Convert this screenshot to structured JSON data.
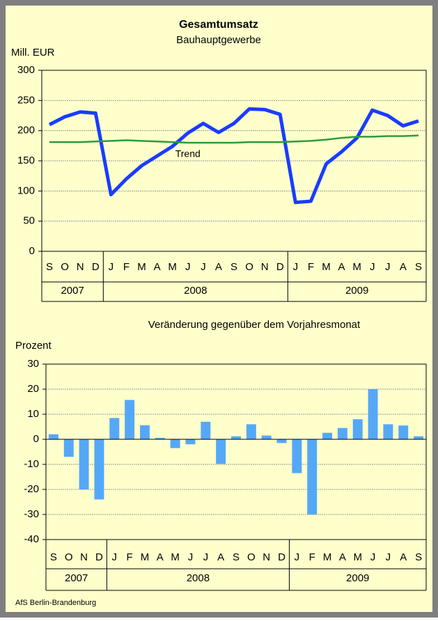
{
  "chart_data": [
    {
      "type": "line",
      "title": "Gesamtumsatz",
      "subtitle": "Bauhauptgewerbe",
      "ylabel": "Mill. EUR",
      "groups": [
        {
          "label": "2007",
          "categories": [
            "S",
            "O",
            "N",
            "D"
          ]
        },
        {
          "label": "2008",
          "categories": [
            "J",
            "F",
            "M",
            "A",
            "M",
            "J",
            "J",
            "A",
            "S",
            "O",
            "N",
            "D"
          ]
        },
        {
          "label": "2009",
          "categories": [
            "J",
            "F",
            "M",
            "A",
            "M",
            "J",
            "J",
            "A",
            "S"
          ]
        }
      ],
      "series": [
        {
          "color": "#1a3cff",
          "values": [
            210,
            223,
            231,
            229,
            94,
            120,
            142,
            158,
            174,
            196,
            212,
            197,
            212,
            236,
            235,
            227,
            81,
            83,
            145,
            165,
            188,
            234,
            225,
            208,
            216
          ]
        },
        {
          "name": "Trend",
          "color": "#2e9a3a",
          "values": [
            181,
            181,
            181,
            182,
            183,
            184,
            183,
            182,
            181,
            180,
            180,
            180,
            180,
            181,
            181,
            181,
            182,
            183,
            185,
            188,
            190,
            190,
            191,
            191,
            192
          ]
        }
      ],
      "ylim": [
        0,
        300
      ],
      "yticks": [
        0,
        50,
        100,
        150,
        200,
        250,
        300
      ],
      "grid": true
    },
    {
      "type": "bar",
      "title": "Veränderung gegenüber dem Vorjahresmonat",
      "ylabel": "Prozent",
      "color": "#55a8f8",
      "groups": [
        {
          "label": "2007",
          "categories": [
            "S",
            "O",
            "N",
            "D"
          ]
        },
        {
          "label": "2008",
          "categories": [
            "J",
            "F",
            "M",
            "A",
            "M",
            "J",
            "J",
            "A",
            "S",
            "O",
            "N",
            "D"
          ]
        },
        {
          "label": "2009",
          "categories": [
            "J",
            "F",
            "M",
            "A",
            "M",
            "J",
            "J",
            "A",
            "S"
          ]
        }
      ],
      "values": [
        2,
        -7,
        -20,
        -24,
        8.5,
        15.7,
        5.6,
        0.6,
        -3.5,
        -2,
        7,
        -9.8,
        1.2,
        6,
        1.5,
        -1.5,
        -13.5,
        -30,
        2.6,
        4.5,
        8,
        20,
        6,
        5.5,
        1.2
      ],
      "ylim": [
        -40,
        30
      ],
      "yticks": [
        -40,
        -30,
        -20,
        -10,
        0,
        10,
        20,
        30
      ],
      "grid": true
    }
  ],
  "footer": "AfS Berlin-Brandenburg"
}
